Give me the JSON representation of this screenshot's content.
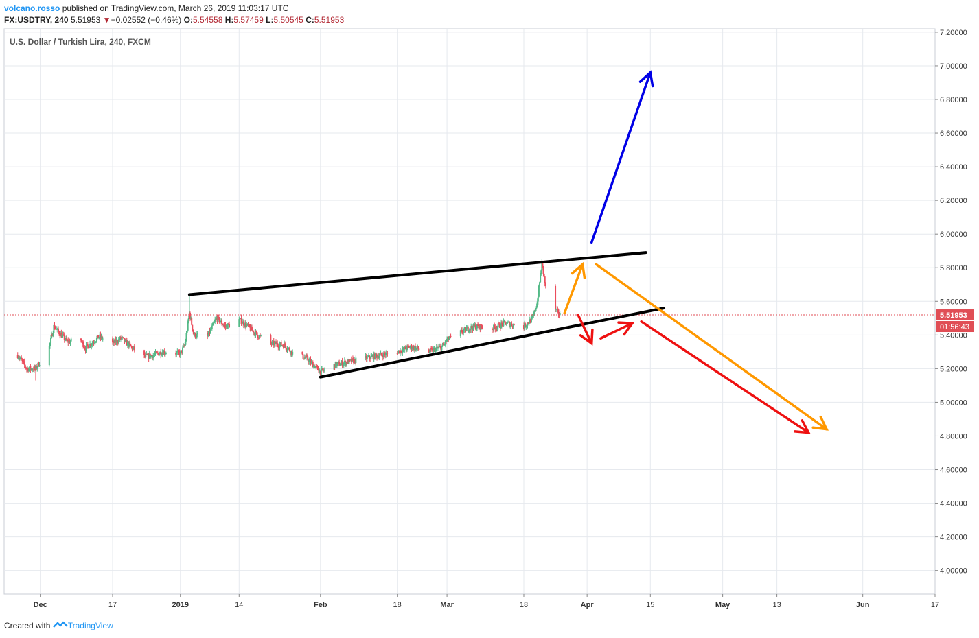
{
  "header": {
    "author": "volcano.rosso",
    "published_text": "published on TradingView.com, March 26, 2019 11:03:17 UTC",
    "symbol": "FX:USDTRY, 240",
    "last_price": "5.51953",
    "change_arrow": "▼",
    "change": "−0.02552 (−0.46%)",
    "open_label": "O:",
    "open": "5.54558",
    "high_label": "H:",
    "high": "5.57459",
    "low_label": "L:",
    "low": "5.50545",
    "close_label": "C:",
    "close": "5.51953"
  },
  "footer": {
    "created_with": "Created with",
    "brand": "TradingView"
  },
  "colors": {
    "up": "#53b987",
    "down": "#eb4d5c",
    "grid": "#e6e9ee",
    "trendline": "#000000",
    "blue": "#0000e6",
    "orange": "#ff9800",
    "red": "#ee1111",
    "price_label_bg": "#e04e55"
  },
  "chart_data": {
    "type": "candlestick",
    "title": "U.S. Dollar / Turkish Lira, 240, FXCM",
    "ylim": [
      3.86,
      7.22
    ],
    "y_ticks": [
      7.2,
      7.0,
      6.8,
      6.6,
      6.4,
      6.2,
      6.0,
      5.8,
      5.6,
      5.4,
      5.2,
      5.0,
      4.8,
      4.6,
      4.4,
      4.2,
      4.0
    ],
    "y_tick_labels": [
      "7.20000",
      "7.00000",
      "6.80000",
      "6.60000",
      "6.40000",
      "6.20000",
      "6.00000",
      "5.80000",
      "5.60000",
      "5.40000",
      "5.20000",
      "5.00000",
      "4.80000",
      "4.60000",
      "4.40000",
      "4.20000",
      "4.00000"
    ],
    "x_range": [
      "2018-11-23",
      "2019-06-17"
    ],
    "x_ticks": [
      {
        "date": "2018-12-01",
        "label": "Dec"
      },
      {
        "date": "2018-12-17",
        "label": "17"
      },
      {
        "date": "2019-01-01",
        "label": "2019"
      },
      {
        "date": "2019-01-14",
        "label": "14"
      },
      {
        "date": "2019-02-01",
        "label": "Feb"
      },
      {
        "date": "2019-02-18",
        "label": "18"
      },
      {
        "date": "2019-03-01",
        "label": "Mar"
      },
      {
        "date": "2019-03-18",
        "label": "18"
      },
      {
        "date": "2019-04-01",
        "label": "Apr"
      },
      {
        "date": "2019-04-15",
        "label": "15"
      },
      {
        "date": "2019-05-01",
        "label": "May"
      },
      {
        "date": "2019-05-13",
        "label": "13"
      },
      {
        "date": "2019-06-01",
        "label": "Jun"
      },
      {
        "date": "2019-06-17",
        "label": "17"
      }
    ],
    "price_path": [
      [
        "2018-11-26",
        5.28
      ],
      [
        "2018-11-28",
        5.2
      ],
      [
        "2018-11-30",
        5.2
      ],
      [
        "2018-12-03",
        5.33
      ],
      [
        "2018-12-04",
        5.45
      ],
      [
        "2018-12-07",
        5.36
      ],
      [
        "2018-12-10",
        5.37
      ],
      [
        "2018-12-11",
        5.32
      ],
      [
        "2018-12-14",
        5.39
      ],
      [
        "2018-12-17",
        5.35
      ],
      [
        "2018-12-19",
        5.38
      ],
      [
        "2018-12-21",
        5.33
      ],
      [
        "2018-12-24",
        5.27
      ],
      [
        "2018-12-26",
        5.28
      ],
      [
        "2018-12-28",
        5.3
      ],
      [
        "2019-01-01",
        5.29
      ],
      [
        "2019-01-02",
        5.34
      ],
      [
        "2019-01-03",
        5.53
      ],
      [
        "2019-01-04",
        5.4
      ],
      [
        "2019-01-07",
        5.39
      ],
      [
        "2019-01-09",
        5.5
      ],
      [
        "2019-01-11",
        5.45
      ],
      [
        "2019-01-14",
        5.49
      ],
      [
        "2019-01-16",
        5.45
      ],
      [
        "2019-01-18",
        5.4
      ],
      [
        "2019-01-21",
        5.35
      ],
      [
        "2019-01-24",
        5.34
      ],
      [
        "2019-01-26",
        5.29
      ],
      [
        "2019-01-29",
        5.26
      ],
      [
        "2019-02-01",
        5.18
      ],
      [
        "2019-02-04",
        5.22
      ],
      [
        "2019-02-07",
        5.24
      ],
      [
        "2019-02-11",
        5.26
      ],
      [
        "2019-02-14",
        5.28
      ],
      [
        "2019-02-18",
        5.3
      ],
      [
        "2019-02-21",
        5.33
      ],
      [
        "2019-02-25",
        5.3
      ],
      [
        "2019-02-28",
        5.33
      ],
      [
        "2019-03-01",
        5.37
      ],
      [
        "2019-03-05",
        5.43
      ],
      [
        "2019-03-07",
        5.45
      ],
      [
        "2019-03-11",
        5.44
      ],
      [
        "2019-03-14",
        5.47
      ],
      [
        "2019-03-18",
        5.45
      ],
      [
        "2019-03-20",
        5.5
      ],
      [
        "2019-03-21",
        5.6
      ],
      [
        "2019-03-22",
        5.83
      ],
      [
        "2019-03-23",
        5.65
      ],
      [
        "2019-03-25",
        5.55
      ],
      [
        "2019-03-26",
        5.52
      ]
    ],
    "notable_wicks": [
      [
        "2019-01-03",
        5.64
      ],
      [
        "2019-03-22",
        5.84
      ],
      [
        "2018-11-30",
        5.13
      ]
    ],
    "price_line": 5.51953,
    "annotations": [
      {
        "type": "line",
        "color": "trendline",
        "points": [
          [
            "2019-01-03",
            5.64
          ],
          [
            "2019-04-14",
            5.89
          ]
        ]
      },
      {
        "type": "line",
        "color": "trendline",
        "points": [
          [
            "2019-02-01",
            5.15
          ],
          [
            "2019-04-18",
            5.56
          ]
        ]
      },
      {
        "type": "arrow",
        "color": "blue",
        "points": [
          [
            "2019-04-02",
            5.95
          ],
          [
            "2019-04-15",
            6.96
          ]
        ]
      },
      {
        "type": "arrow",
        "color": "orange",
        "points": [
          [
            "2019-03-27",
            5.53
          ],
          [
            "2019-03-31",
            5.82
          ]
        ]
      },
      {
        "type": "arrow",
        "color": "orange",
        "points": [
          [
            "2019-04-03",
            5.82
          ],
          [
            "2019-05-24",
            4.84
          ]
        ]
      },
      {
        "type": "arrow",
        "color": "red",
        "points": [
          [
            "2019-03-30",
            5.52
          ],
          [
            "2019-04-02",
            5.35
          ]
        ]
      },
      {
        "type": "arrow",
        "color": "red",
        "points": [
          [
            "2019-04-04",
            5.38
          ],
          [
            "2019-04-11",
            5.47
          ]
        ]
      },
      {
        "type": "arrow",
        "color": "red",
        "points": [
          [
            "2019-04-13",
            5.48
          ],
          [
            "2019-05-20",
            4.82
          ]
        ]
      }
    ],
    "price_label": {
      "value": "5.51953",
      "countdown": "01:56:43"
    }
  }
}
